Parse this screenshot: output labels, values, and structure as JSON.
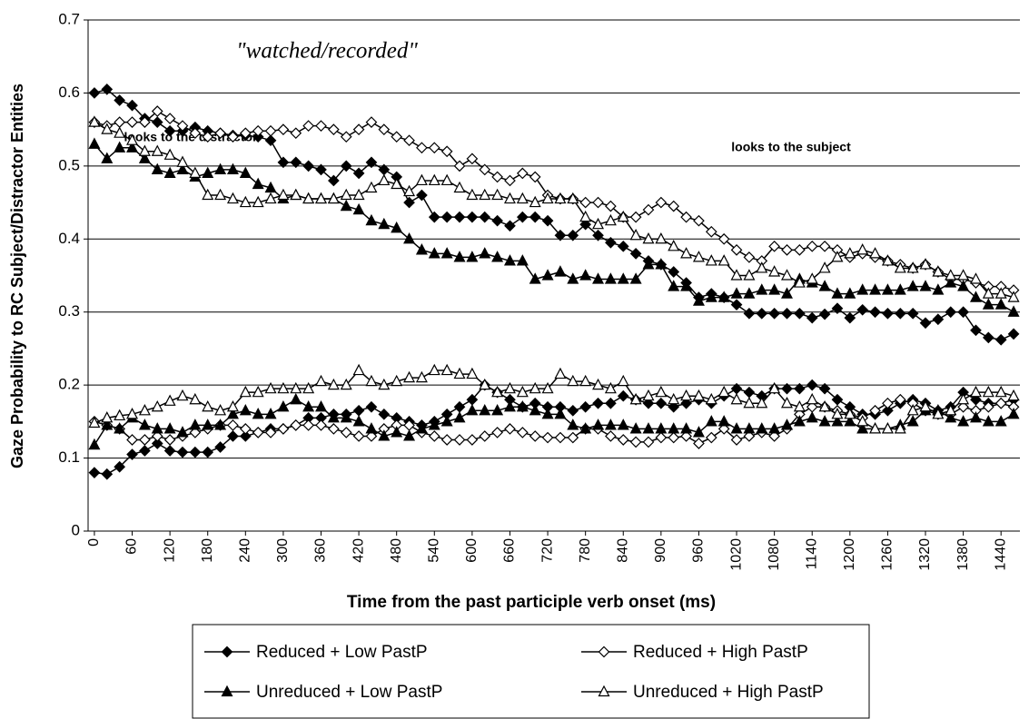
{
  "chart_data": {
    "type": "line",
    "y_label": "Gaze Probability to RC Subject/Distractor Entities",
    "x_label": "Time from the past participle verb onset (ms)",
    "annotations": [
      "\"watched/recorded\"",
      "looks to the subject",
      "looks to the distractor"
    ],
    "xlim": [
      -10,
      1470
    ],
    "ylim": [
      0,
      0.7
    ],
    "xticks": [
      0,
      60,
      120,
      180,
      240,
      300,
      360,
      420,
      480,
      540,
      600,
      660,
      720,
      780,
      840,
      900,
      960,
      1020,
      1080,
      1140,
      1200,
      1260,
      1320,
      1380,
      1440
    ],
    "yticks": [
      0,
      0.1,
      0.2,
      0.3,
      0.4,
      0.5,
      0.6,
      0.7
    ],
    "grid": true,
    "x": [
      0,
      20,
      40,
      60,
      80,
      100,
      120,
      140,
      160,
      180,
      200,
      220,
      240,
      260,
      280,
      300,
      320,
      340,
      360,
      380,
      400,
      420,
      440,
      460,
      480,
      500,
      520,
      540,
      560,
      580,
      600,
      620,
      640,
      660,
      680,
      700,
      720,
      740,
      760,
      780,
      800,
      820,
      840,
      860,
      880,
      900,
      920,
      940,
      960,
      980,
      1000,
      1020,
      1040,
      1060,
      1080,
      1100,
      1120,
      1140,
      1160,
      1180,
      1200,
      1220,
      1240,
      1260,
      1280,
      1300,
      1320,
      1340,
      1360,
      1380,
      1400,
      1420,
      1440,
      1460
    ],
    "series": [
      {
        "name": "Reduced + Low PastP",
        "color": "#000000",
        "marker": "diamond",
        "filled": true,
        "values": [
          0.6,
          0.605,
          0.59,
          0.583,
          0.565,
          0.56,
          0.548,
          0.548,
          0.553,
          0.548,
          0.545,
          0.542,
          0.542,
          0.54,
          0.535,
          0.505,
          0.505,
          0.5,
          0.495,
          0.48,
          0.5,
          0.49,
          0.505,
          0.495,
          0.485,
          0.45,
          0.46,
          0.43,
          0.43,
          0.43,
          0.43,
          0.43,
          0.425,
          0.418,
          0.43,
          0.43,
          0.425,
          0.405,
          0.405,
          0.42,
          0.405,
          0.395,
          0.39,
          0.38,
          0.37,
          0.365,
          0.355,
          0.34,
          0.32,
          0.325,
          0.32,
          0.31,
          0.298,
          0.298,
          0.298,
          0.298,
          0.298,
          0.292,
          0.297,
          0.305,
          0.292,
          0.303,
          0.3,
          0.298,
          0.298,
          0.298,
          0.285,
          0.29,
          0.3,
          0.3,
          0.275,
          0.265,
          0.262,
          0.27
        ],
        "distractor_values": [
          0.08,
          0.078,
          0.088,
          0.105,
          0.11,
          0.12,
          0.11,
          0.108,
          0.108,
          0.108,
          0.115,
          0.13,
          0.13,
          0.135,
          0.14,
          0.14,
          0.145,
          0.155,
          0.155,
          0.16,
          0.16,
          0.165,
          0.17,
          0.16,
          0.155,
          0.15,
          0.145,
          0.15,
          0.16,
          0.17,
          0.18,
          0.2,
          0.19,
          0.18,
          0.17,
          0.175,
          0.17,
          0.17,
          0.165,
          0.17,
          0.175,
          0.175,
          0.185,
          0.18,
          0.175,
          0.175,
          0.17,
          0.175,
          0.18,
          0.175,
          0.185,
          0.195,
          0.19,
          0.185,
          0.195,
          0.195,
          0.195,
          0.2,
          0.195,
          0.18,
          0.17,
          0.16,
          0.16,
          0.165,
          0.175,
          0.18,
          0.175,
          0.165,
          0.17,
          0.19,
          0.18,
          0.175,
          0.175,
          0.18
        ]
      },
      {
        "name": "Reduced + High PastP",
        "color": "#000000",
        "marker": "diamond",
        "filled": false,
        "values": [
          0.56,
          0.555,
          0.56,
          0.56,
          0.56,
          0.575,
          0.565,
          0.555,
          0.545,
          0.54,
          0.545,
          0.54,
          0.545,
          0.548,
          0.548,
          0.55,
          0.545,
          0.555,
          0.555,
          0.55,
          0.54,
          0.55,
          0.56,
          0.55,
          0.54,
          0.535,
          0.525,
          0.525,
          0.52,
          0.5,
          0.51,
          0.495,
          0.485,
          0.48,
          0.49,
          0.485,
          0.46,
          0.455,
          0.455,
          0.45,
          0.45,
          0.445,
          0.43,
          0.43,
          0.44,
          0.45,
          0.445,
          0.43,
          0.425,
          0.41,
          0.4,
          0.385,
          0.375,
          0.37,
          0.39,
          0.385,
          0.385,
          0.39,
          0.39,
          0.385,
          0.375,
          0.38,
          0.375,
          0.37,
          0.365,
          0.36,
          0.365,
          0.355,
          0.345,
          0.345,
          0.34,
          0.335,
          0.335,
          0.33
        ],
        "distractor_values": [
          0.15,
          0.145,
          0.14,
          0.125,
          0.125,
          0.13,
          0.125,
          0.13,
          0.135,
          0.14,
          0.145,
          0.145,
          0.14,
          0.135,
          0.135,
          0.14,
          0.145,
          0.145,
          0.145,
          0.14,
          0.135,
          0.13,
          0.13,
          0.14,
          0.145,
          0.145,
          0.135,
          0.13,
          0.125,
          0.125,
          0.125,
          0.13,
          0.135,
          0.14,
          0.135,
          0.13,
          0.128,
          0.128,
          0.128,
          0.14,
          0.14,
          0.13,
          0.125,
          0.122,
          0.122,
          0.128,
          0.128,
          0.13,
          0.12,
          0.128,
          0.14,
          0.125,
          0.13,
          0.135,
          0.13,
          0.14,
          0.16,
          0.17,
          0.17,
          0.165,
          0.16,
          0.155,
          0.165,
          0.175,
          0.18,
          0.175,
          0.165,
          0.16,
          0.16,
          0.17,
          0.165,
          0.17,
          0.175,
          0.17
        ]
      },
      {
        "name": "Unreduced + Low PastP",
        "color": "#000000",
        "marker": "triangle",
        "filled": true,
        "values": [
          0.53,
          0.51,
          0.525,
          0.525,
          0.51,
          0.495,
          0.49,
          0.495,
          0.485,
          0.49,
          0.495,
          0.495,
          0.49,
          0.475,
          0.47,
          0.455,
          0.46,
          0.455,
          0.455,
          0.455,
          0.445,
          0.44,
          0.425,
          0.42,
          0.415,
          0.4,
          0.385,
          0.38,
          0.38,
          0.375,
          0.375,
          0.38,
          0.375,
          0.37,
          0.37,
          0.345,
          0.35,
          0.355,
          0.345,
          0.35,
          0.345,
          0.345,
          0.345,
          0.345,
          0.365,
          0.365,
          0.335,
          0.335,
          0.315,
          0.32,
          0.32,
          0.325,
          0.325,
          0.33,
          0.33,
          0.325,
          0.345,
          0.34,
          0.335,
          0.325,
          0.325,
          0.33,
          0.33,
          0.33,
          0.33,
          0.335,
          0.335,
          0.33,
          0.34,
          0.335,
          0.32,
          0.31,
          0.31,
          0.3
        ],
        "distractor_values": [
          0.118,
          0.145,
          0.14,
          0.155,
          0.145,
          0.14,
          0.14,
          0.135,
          0.145,
          0.145,
          0.145,
          0.16,
          0.165,
          0.16,
          0.16,
          0.17,
          0.18,
          0.17,
          0.17,
          0.155,
          0.155,
          0.15,
          0.14,
          0.13,
          0.135,
          0.13,
          0.14,
          0.145,
          0.15,
          0.155,
          0.165,
          0.165,
          0.165,
          0.17,
          0.17,
          0.165,
          0.16,
          0.16,
          0.145,
          0.14,
          0.145,
          0.145,
          0.145,
          0.14,
          0.14,
          0.14,
          0.14,
          0.14,
          0.135,
          0.15,
          0.15,
          0.14,
          0.14,
          0.14,
          0.14,
          0.145,
          0.15,
          0.155,
          0.15,
          0.15,
          0.15,
          0.14,
          0.14,
          0.14,
          0.145,
          0.15,
          0.165,
          0.165,
          0.155,
          0.15,
          0.155,
          0.15,
          0.15,
          0.16
        ]
      },
      {
        "name": "Unreduced + High PastP",
        "color": "#000000",
        "marker": "triangle",
        "filled": false,
        "values": [
          0.56,
          0.55,
          0.545,
          0.535,
          0.52,
          0.52,
          0.515,
          0.505,
          0.49,
          0.46,
          0.46,
          0.455,
          0.45,
          0.45,
          0.455,
          0.46,
          0.46,
          0.455,
          0.455,
          0.455,
          0.46,
          0.46,
          0.47,
          0.48,
          0.475,
          0.465,
          0.48,
          0.48,
          0.48,
          0.47,
          0.46,
          0.46,
          0.46,
          0.455,
          0.455,
          0.45,
          0.455,
          0.455,
          0.455,
          0.43,
          0.42,
          0.425,
          0.43,
          0.405,
          0.4,
          0.4,
          0.39,
          0.38,
          0.375,
          0.37,
          0.37,
          0.35,
          0.35,
          0.36,
          0.355,
          0.35,
          0.34,
          0.345,
          0.36,
          0.375,
          0.38,
          0.385,
          0.38,
          0.37,
          0.36,
          0.36,
          0.365,
          0.355,
          0.35,
          0.35,
          0.345,
          0.325,
          0.325,
          0.32
        ],
        "distractor_values": [
          0.148,
          0.155,
          0.158,
          0.16,
          0.165,
          0.17,
          0.178,
          0.185,
          0.18,
          0.17,
          0.165,
          0.17,
          0.19,
          0.19,
          0.195,
          0.195,
          0.195,
          0.195,
          0.205,
          0.2,
          0.2,
          0.22,
          0.205,
          0.2,
          0.205,
          0.21,
          0.21,
          0.22,
          0.22,
          0.215,
          0.215,
          0.2,
          0.19,
          0.195,
          0.19,
          0.195,
          0.195,
          0.215,
          0.205,
          0.205,
          0.2,
          0.195,
          0.205,
          0.18,
          0.185,
          0.19,
          0.18,
          0.185,
          0.185,
          0.18,
          0.19,
          0.18,
          0.175,
          0.175,
          0.195,
          0.175,
          0.17,
          0.18,
          0.17,
          0.16,
          0.16,
          0.15,
          0.14,
          0.14,
          0.14,
          0.165,
          0.17,
          0.16,
          0.165,
          0.18,
          0.19,
          0.19,
          0.19,
          0.185
        ]
      }
    ]
  }
}
